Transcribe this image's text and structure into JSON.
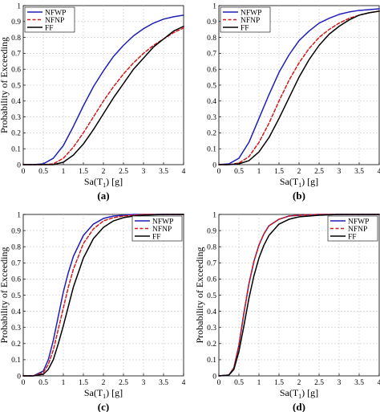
{
  "chart_data": [
    {
      "type": "line",
      "panel_label": "(a)",
      "xlabel_base": "Sa(T",
      "xlabel_sub": "1",
      "xlabel_end": ") [g]",
      "ylabel": "Probability of Exceeding",
      "xlim": [
        0,
        4
      ],
      "ylim": [
        0,
        1
      ],
      "xticks": [
        "0",
        "0.5",
        "1",
        "1.5",
        "2",
        "2.5",
        "3",
        "3.5",
        "4"
      ],
      "yticks": [
        "0",
        "0.1",
        "0.2",
        "0.3",
        "0.4",
        "0.5",
        "0.6",
        "0.7",
        "0.8",
        "0.9",
        "1"
      ],
      "grid": true,
      "legend_position": "top-left",
      "x": [
        0,
        0.25,
        0.5,
        0.75,
        1.0,
        1.25,
        1.5,
        1.75,
        2.0,
        2.25,
        2.5,
        2.75,
        3.0,
        3.25,
        3.5,
        3.75,
        4.0
      ],
      "series": [
        {
          "name": "NFWP",
          "color": "#1f1fb8",
          "dash": "solid",
          "values": [
            0,
            0,
            0.005,
            0.04,
            0.12,
            0.24,
            0.37,
            0.49,
            0.59,
            0.68,
            0.75,
            0.81,
            0.855,
            0.89,
            0.915,
            0.93,
            0.94
          ]
        },
        {
          "name": "NFNP",
          "color": "#d11a1a",
          "dash": "dashed",
          "values": [
            0,
            0,
            0,
            0.005,
            0.04,
            0.11,
            0.2,
            0.3,
            0.4,
            0.49,
            0.57,
            0.64,
            0.7,
            0.75,
            0.79,
            0.83,
            0.86
          ]
        },
        {
          "name": "FF",
          "color": "#000000",
          "dash": "solid",
          "values": [
            0,
            0,
            0,
            0,
            0.015,
            0.06,
            0.13,
            0.22,
            0.32,
            0.42,
            0.51,
            0.6,
            0.67,
            0.74,
            0.79,
            0.84,
            0.87
          ]
        }
      ]
    },
    {
      "type": "line",
      "panel_label": "(b)",
      "xlabel_base": "Sa(T",
      "xlabel_sub": "1",
      "xlabel_end": ") [g]",
      "ylabel": "",
      "xlim": [
        0,
        4
      ],
      "ylim": [
        0,
        1
      ],
      "xticks": [
        "0",
        "0.5",
        "1",
        "1.5",
        "2",
        "2.5",
        "3",
        "3.5",
        "4"
      ],
      "yticks": [
        "0",
        "0.1",
        "0.2",
        "0.3",
        "0.4",
        "0.5",
        "0.6",
        "0.7",
        "0.8",
        "0.9",
        "1"
      ],
      "grid": true,
      "legend_position": "top-left",
      "x": [
        0,
        0.25,
        0.5,
        0.75,
        1.0,
        1.25,
        1.5,
        1.75,
        2.0,
        2.25,
        2.5,
        2.75,
        3.0,
        3.25,
        3.5,
        3.75,
        4.0
      ],
      "series": [
        {
          "name": "NFWP",
          "color": "#1f1fb8",
          "dash": "solid",
          "values": [
            0,
            0.005,
            0.04,
            0.14,
            0.29,
            0.44,
            0.58,
            0.69,
            0.78,
            0.84,
            0.89,
            0.92,
            0.945,
            0.96,
            0.97,
            0.975,
            0.98
          ]
        },
        {
          "name": "NFNP",
          "color": "#d11a1a",
          "dash": "dashed",
          "values": [
            0,
            0,
            0.01,
            0.05,
            0.14,
            0.26,
            0.4,
            0.53,
            0.64,
            0.73,
            0.8,
            0.85,
            0.89,
            0.92,
            0.94,
            0.955,
            0.965
          ]
        },
        {
          "name": "FF",
          "color": "#000000",
          "dash": "solid",
          "values": [
            0,
            0,
            0.005,
            0.025,
            0.08,
            0.17,
            0.29,
            0.42,
            0.55,
            0.66,
            0.75,
            0.82,
            0.87,
            0.91,
            0.94,
            0.955,
            0.965
          ]
        }
      ]
    },
    {
      "type": "line",
      "panel_label": "(c)",
      "xlabel_base": "Sa(T",
      "xlabel_sub": "1",
      "xlabel_end": ") [g]",
      "ylabel": "Probability of Exceeding",
      "xlim": [
        0,
        4
      ],
      "ylim": [
        0,
        1
      ],
      "xticks": [
        "0",
        "0.5",
        "1",
        "1.5",
        "2",
        "2.5",
        "3",
        "3.5",
        "4"
      ],
      "yticks": [
        "0",
        "0.1",
        "0.2",
        "0.3",
        "0.4",
        "0.5",
        "0.6",
        "0.7",
        "0.8",
        "0.9",
        "1"
      ],
      "grid": true,
      "legend_position": "top-right",
      "x": [
        0,
        0.25,
        0.5,
        0.625,
        0.75,
        0.875,
        1.0,
        1.125,
        1.25,
        1.5,
        1.75,
        2.0,
        2.25,
        2.5,
        2.75,
        3.0,
        3.5,
        4.0
      ],
      "series": [
        {
          "name": "NFWP",
          "color": "#1f1fb8",
          "dash": "solid",
          "values": [
            0,
            0,
            0.03,
            0.1,
            0.22,
            0.37,
            0.52,
            0.64,
            0.74,
            0.87,
            0.94,
            0.975,
            0.99,
            0.995,
            1.0,
            1.0,
            1.0,
            1.0
          ]
        },
        {
          "name": "NFNP",
          "color": "#d11a1a",
          "dash": "dashed",
          "values": [
            0,
            0,
            0.02,
            0.07,
            0.16,
            0.29,
            0.42,
            0.55,
            0.66,
            0.82,
            0.91,
            0.96,
            0.98,
            0.99,
            0.995,
            1.0,
            1.0,
            1.0
          ]
        },
        {
          "name": "FF",
          "color": "#000000",
          "dash": "solid",
          "values": [
            0,
            0,
            0.01,
            0.04,
            0.1,
            0.2,
            0.31,
            0.43,
            0.55,
            0.73,
            0.85,
            0.92,
            0.96,
            0.98,
            0.99,
            0.995,
            1.0,
            1.0
          ]
        }
      ]
    },
    {
      "type": "line",
      "panel_label": "(d)",
      "xlabel_base": "Sa(T",
      "xlabel_sub": "1",
      "xlabel_end": ") [g]",
      "ylabel": "Probability of Exceeding",
      "xlim": [
        0,
        4
      ],
      "ylim": [
        0,
        1
      ],
      "xticks": [
        "0",
        "0.5",
        "1",
        "1.5",
        "2",
        "2.5",
        "3",
        "3.5",
        "4"
      ],
      "yticks": [
        "0",
        "0.1",
        "0.2",
        "0.3",
        "0.4",
        "0.5",
        "0.6",
        "0.7",
        "0.8",
        "0.9",
        "1"
      ],
      "grid": true,
      "legend_position": "top-right",
      "x": [
        0,
        0.25,
        0.375,
        0.5,
        0.625,
        0.75,
        0.875,
        1.0,
        1.125,
        1.25,
        1.5,
        1.75,
        2.0,
        2.5,
        3.0,
        4.0
      ],
      "series": [
        {
          "name": "NFWP",
          "color": "#1f1fb8",
          "dash": "solid",
          "values": [
            0,
            0.005,
            0.05,
            0.19,
            0.39,
            0.57,
            0.71,
            0.81,
            0.88,
            0.93,
            0.97,
            0.99,
            0.995,
            1.0,
            1.0,
            1.0
          ]
        },
        {
          "name": "NFNP",
          "color": "#d11a1a",
          "dash": "dashed",
          "values": [
            0,
            0.005,
            0.05,
            0.19,
            0.39,
            0.57,
            0.71,
            0.81,
            0.88,
            0.93,
            0.97,
            0.99,
            0.995,
            1.0,
            1.0,
            1.0
          ]
        },
        {
          "name": "FF",
          "color": "#000000",
          "dash": "solid",
          "values": [
            0,
            0.005,
            0.04,
            0.15,
            0.31,
            0.48,
            0.62,
            0.73,
            0.81,
            0.87,
            0.94,
            0.97,
            0.985,
            0.995,
            1.0,
            1.0
          ]
        }
      ]
    }
  ]
}
